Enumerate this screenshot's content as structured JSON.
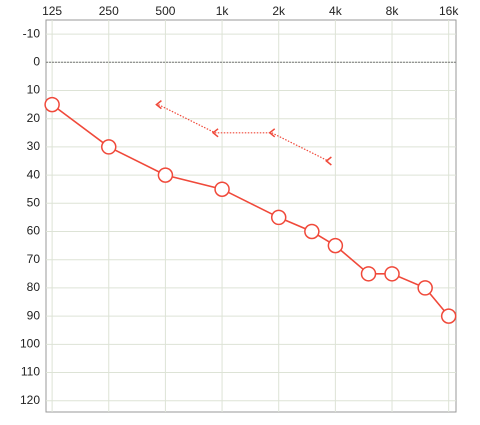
{
  "chart_data": {
    "type": "audiogram",
    "x_scale": "log",
    "xlim": [
      116,
      17500
    ],
    "xticks": [
      125,
      250,
      500,
      {
        "value": 1000,
        "label": "1k"
      },
      {
        "value": 2000,
        "label": "2k"
      },
      {
        "value": 4000,
        "label": "4k"
      },
      {
        "value": 8000,
        "label": "8k"
      },
      {
        "value": 16000,
        "label": "16k"
      }
    ],
    "ylim": [
      -15,
      124
    ],
    "y_inverted": true,
    "yticks": [
      -10,
      0,
      10,
      20,
      30,
      40,
      50,
      60,
      70,
      80,
      90,
      100,
      110,
      120
    ],
    "grid": true,
    "reference_line": 0,
    "series": [
      {
        "marker": "circle",
        "color": "#f0493a",
        "line": "solid",
        "x": [
          125,
          250,
          500,
          1000,
          2000,
          3000,
          4000,
          6000,
          8000,
          12000,
          16000
        ],
        "values": [
          15,
          30,
          40,
          45,
          55,
          60,
          65,
          75,
          75,
          80,
          90
        ]
      },
      {
        "marker": "bracket-left",
        "color": "#f0493a",
        "line": "dotted",
        "x": [
          500,
          1000,
          2000,
          4000
        ],
        "values": [
          15,
          25,
          25,
          35
        ]
      }
    ]
  }
}
